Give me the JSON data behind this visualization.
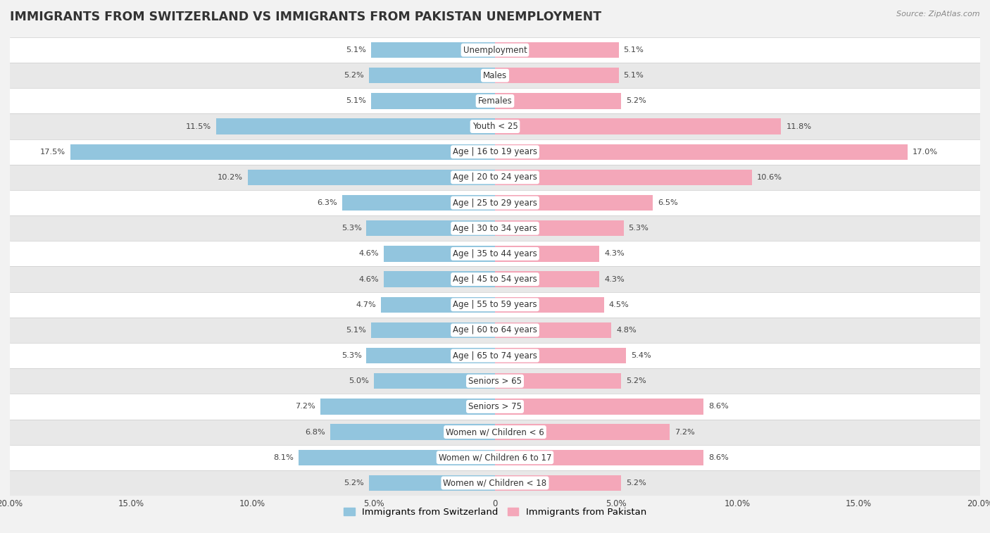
{
  "title": "IMMIGRANTS FROM SWITZERLAND VS IMMIGRANTS FROM PAKISTAN UNEMPLOYMENT",
  "source": "Source: ZipAtlas.com",
  "categories": [
    "Unemployment",
    "Males",
    "Females",
    "Youth < 25",
    "Age | 16 to 19 years",
    "Age | 20 to 24 years",
    "Age | 25 to 29 years",
    "Age | 30 to 34 years",
    "Age | 35 to 44 years",
    "Age | 45 to 54 years",
    "Age | 55 to 59 years",
    "Age | 60 to 64 years",
    "Age | 65 to 74 years",
    "Seniors > 65",
    "Seniors > 75",
    "Women w/ Children < 6",
    "Women w/ Children 6 to 17",
    "Women w/ Children < 18"
  ],
  "switzerland_values": [
    5.1,
    5.2,
    5.1,
    11.5,
    17.5,
    10.2,
    6.3,
    5.3,
    4.6,
    4.6,
    4.7,
    5.1,
    5.3,
    5.0,
    7.2,
    6.8,
    8.1,
    5.2
  ],
  "pakistan_values": [
    5.1,
    5.1,
    5.2,
    11.8,
    17.0,
    10.6,
    6.5,
    5.3,
    4.3,
    4.3,
    4.5,
    4.8,
    5.4,
    5.2,
    8.6,
    7.2,
    8.6,
    5.2
  ],
  "switzerland_color": "#92c5de",
  "pakistan_color": "#f4a7b9",
  "switzerland_label": "Immigrants from Switzerland",
  "pakistan_label": "Immigrants from Pakistan",
  "axis_max": 20.0,
  "bar_height": 0.62,
  "bg_color": "#f2f2f2",
  "row_color_even": "#ffffff",
  "row_color_odd": "#e8e8e8",
  "title_fontsize": 12.5,
  "label_fontsize": 8.5,
  "value_fontsize": 8.2
}
